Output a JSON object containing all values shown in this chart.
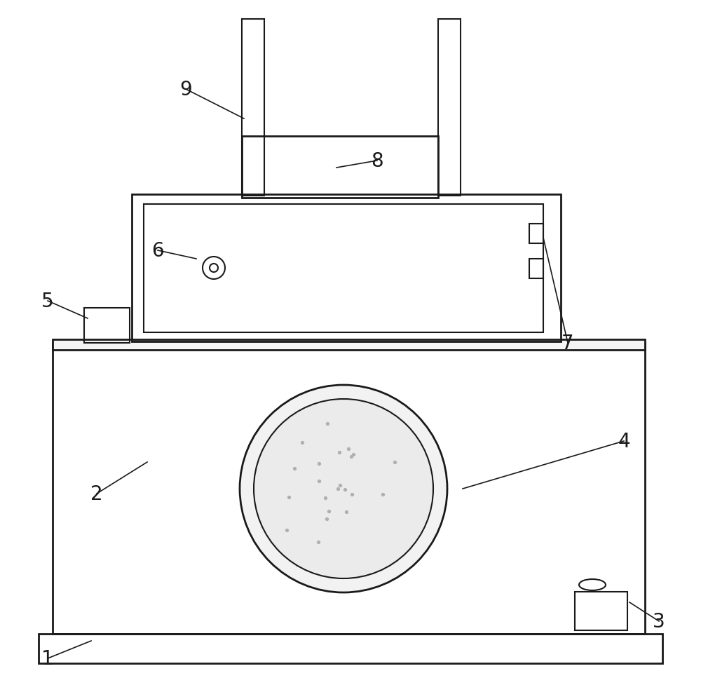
{
  "bg_color": "#ffffff",
  "line_color": "#1a1a1a",
  "lw_thick": 2.0,
  "lw_thin": 1.5,
  "fig_width": 10.0,
  "fig_height": 9.78,
  "dpi": 100
}
